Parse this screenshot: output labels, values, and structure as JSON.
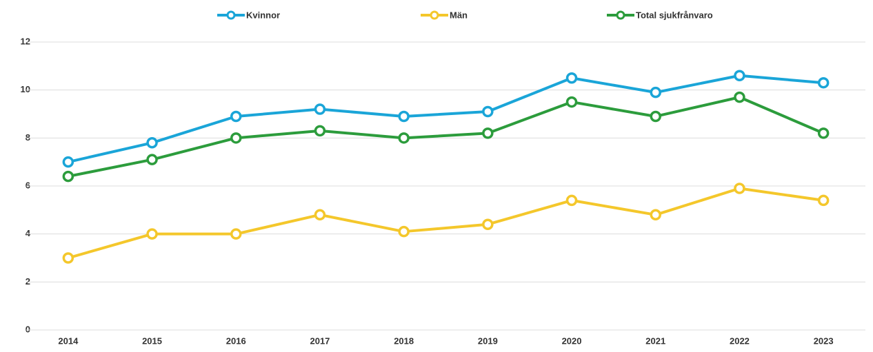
{
  "chart_data": {
    "type": "line",
    "categories": [
      "2014",
      "2015",
      "2016",
      "2017",
      "2018",
      "2019",
      "2020",
      "2021",
      "2022",
      "2023"
    ],
    "series": [
      {
        "name": "Kvinnor",
        "color": "#1aa5d8",
        "values": [
          7.0,
          7.8,
          8.9,
          9.2,
          8.9,
          9.1,
          10.5,
          9.9,
          10.6,
          10.3
        ]
      },
      {
        "name": "Män",
        "color": "#f4c72b",
        "values": [
          3.0,
          4.0,
          4.0,
          4.8,
          4.1,
          4.4,
          5.4,
          4.8,
          5.9,
          5.4
        ]
      },
      {
        "name": "Total sjukfrånvaro",
        "color": "#2c9c3c",
        "values": [
          6.4,
          7.1,
          8.0,
          8.3,
          8.0,
          8.2,
          9.5,
          8.9,
          9.7,
          8.2
        ]
      }
    ],
    "ylim": [
      0,
      12
    ],
    "yticks": [
      0,
      2,
      4,
      6,
      8,
      10,
      12
    ],
    "grid": true,
    "legend": "top"
  }
}
